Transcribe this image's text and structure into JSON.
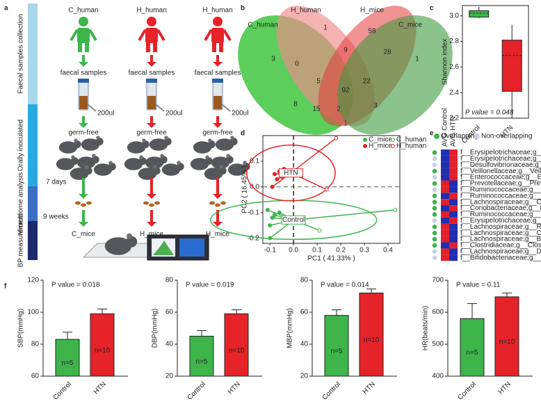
{
  "panel_labels": [
    "a",
    "b",
    "c",
    "d",
    "e",
    "f"
  ],
  "diagram": {
    "stages": [
      "Faecal samples collection",
      "Orally inoculated",
      "Microbiome analysis",
      "BP measurement"
    ],
    "columns": [
      {
        "donor": "C_human",
        "sample": "faecal samples",
        "volume": "200ul",
        "state": "germ-free",
        "recipient": "C_mice",
        "color": "#3db54b"
      },
      {
        "donor": "H_human",
        "sample": "faecal samples",
        "volume": "200ul",
        "state": "germ-free",
        "recipient": "H_mice",
        "color": "#e52329"
      },
      {
        "donor": "H_human",
        "sample": "faecal samples",
        "volume": "200ul",
        "state": "germ-free",
        "recipient": "H_mice",
        "color": "#e52329"
      }
    ],
    "durations": [
      "7 days",
      "9 weeks"
    ]
  },
  "venn": {
    "labels": [
      "C_human",
      "H_human",
      "H_mice",
      "C_mice"
    ],
    "counts": [
      3,
      1,
      0,
      9,
      58,
      28,
      1,
      5,
      22,
      92,
      8,
      15,
      2,
      3,
      1
    ]
  },
  "chart_data": [
    {
      "type": "box",
      "ylabel": "Shannon index",
      "annotation": "P value = 0.048",
      "categories": [
        "Control",
        "HTN"
      ],
      "boxes": [
        {
          "min": 2.98,
          "q1": 2.99,
          "median": 3.02,
          "q3": 3.04,
          "max": 3.07,
          "color": "#3db54b"
        },
        {
          "min": 2.2,
          "q1": 2.41,
          "median": 2.69,
          "q3": 2.81,
          "max": 2.93,
          "color": "#e52329"
        }
      ],
      "ylim": [
        2.2,
        3.08
      ],
      "yticks": [
        2.2,
        2.4,
        2.6,
        2.8,
        {
          "value": 3,
          "label": "3.0"
        }
      ]
    },
    {
      "type": "scatter",
      "xlabel": "PC1 ( 41.33% )",
      "ylabel": "PC2 ( 16.45% )",
      "series": [
        {
          "name": "C_mice",
          "group": "Control",
          "color": "#3db54b",
          "marker": "filled",
          "x": [
            -0.1,
            -0.11,
            -0.09,
            -0.06,
            -0.1,
            -0.08
          ],
          "y": [
            -0.2,
            -0.09,
            -0.12,
            -0.1,
            -0.15,
            -0.11
          ]
        },
        {
          "name": "C_human",
          "group": "Control",
          "color": "#3db54b",
          "marker": "open",
          "x": [
            0.43,
            0.11
          ],
          "y": [
            -0.09,
            -0.17
          ]
        },
        {
          "name": "H_mice",
          "group": "HTN",
          "color": "#e52329",
          "marker": "filled",
          "x": [
            -0.08,
            -0.06,
            -0.05,
            -0.07,
            -0.04,
            -0.03,
            -0.09
          ],
          "y": [
            0.05,
            0.06,
            0.04,
            0.03,
            0.07,
            0.06,
            0.0
          ]
        },
        {
          "name": "H_human",
          "group": "HTN",
          "color": "#e52329",
          "marker": "open",
          "x": [
            0.18,
            0.14
          ],
          "y": [
            0.19,
            -0.01
          ]
        }
      ],
      "xlim": [
        -0.13,
        0.45
      ],
      "ylim": [
        -0.22,
        0.2
      ],
      "xticks": [
        -0.1,
        {
          "value": 0,
          "label": "0.0"
        },
        0.1,
        0.2,
        0.3,
        0.4
      ],
      "yticks": [
        0.1,
        {
          "value": 0,
          "label": "0.0"
        },
        -0.1,
        -0.2
      ]
    },
    {
      "type": "heatmap",
      "legend": [
        "Overlapping",
        "Non-overlapping"
      ],
      "legend_colors": [
        "#3db54b",
        "#c9d0e6"
      ],
      "columns": [
        "AVG Control",
        "AVG HTN"
      ],
      "rows": [
        "f__Erysipelotrichaceae;g__Holdemania",
        "f__Erysipelotrichaceae;g__Coprobacillus",
        "f__Desulfovibrionaceae;g__Bilophila",
        "f__Veillonellaceae;g__Veillonella",
        "f__Enterococcaceae;g__Enterococcus",
        "f__Prevotellaceae;g__Prevotella",
        "f__Ruminococcaceae;g__Faecalibacterium",
        "f__Ruminococcaceae;g__Anaerotruncus",
        "f__Lachnospiraceae;g__Coprococcus",
        "f__Coriobacteriaceae;g__Eggerthella",
        "f__Ruminococcaceae;g__Ruminococcus",
        "f__Erysipelotrichaceae;g__Clostridium",
        "f__Lachnospiraceae;g__Roseburia",
        "f__Lachnospiraceae;g__Clostridium",
        "f__Lachnospiraceae;g__Blautia",
        "f__Clostridiaceae;g__Clostridium",
        "f__Lachnospiraceae;g__Dorea",
        "f__Bifidobacteriaceae;g__Bifidobacterium"
      ],
      "overlapping": [
        true,
        false,
        false,
        true,
        false,
        true,
        false,
        true,
        true,
        true,
        true,
        false,
        true,
        true,
        true,
        true,
        false,
        false
      ],
      "values": [
        [
          -1,
          1
        ],
        [
          -1,
          1
        ],
        [
          -1,
          1
        ],
        [
          -1,
          1
        ],
        [
          -1,
          1
        ],
        [
          1,
          -1
        ],
        [
          1,
          -1
        ],
        [
          -1,
          1
        ],
        [
          1,
          -1
        ],
        [
          -1,
          1
        ],
        [
          1,
          -1
        ],
        [
          -1,
          1
        ],
        [
          1,
          -1
        ],
        [
          1,
          -1
        ],
        [
          1,
          -1
        ],
        [
          -1,
          1
        ],
        [
          1,
          -1
        ],
        [
          1,
          -1
        ]
      ],
      "colors": {
        "low": "#1f2db0",
        "high": "#e0202a"
      }
    },
    {
      "type": "bar",
      "ylabel": "SBP(mmHg)",
      "annotation": "P value = 0.018",
      "categories": [
        "Control",
        "HTN"
      ],
      "values": [
        83,
        99
      ],
      "errors": [
        4.5,
        3
      ],
      "value_notes": [
        "n=5",
        "n=10"
      ],
      "colors": [
        "#3db54b",
        "#e52329"
      ],
      "ylim": [
        60,
        120
      ],
      "yticks": [
        60,
        80,
        100,
        120
      ]
    },
    {
      "type": "bar",
      "ylabel": "DBP(mmHg)",
      "annotation": "P value = 0.019",
      "categories": [
        "Control",
        "HTN"
      ],
      "values": [
        45,
        59
      ],
      "errors": [
        3.5,
        2.5
      ],
      "value_notes": [
        "n=5",
        "n=10"
      ],
      "colors": [
        "#3db54b",
        "#e52329"
      ],
      "ylim": [
        20,
        80
      ],
      "yticks": [
        20,
        40,
        60,
        80
      ]
    },
    {
      "type": "bar",
      "ylabel": "MBP(mmHg)",
      "annotation": "P value = 0.014",
      "categories": [
        "Control",
        "HTN"
      ],
      "values": [
        58,
        72
      ],
      "errors": [
        3.5,
        2.5
      ],
      "value_notes": [
        "n=5",
        "n=10"
      ],
      "colors": [
        "#3db54b",
        "#e52329"
      ],
      "ylim": [
        20,
        80
      ],
      "yticks": [
        20,
        40,
        60,
        80
      ]
    },
    {
      "type": "bar",
      "ylabel": "HR(beats/min)",
      "annotation": "P value = 0.11",
      "categories": [
        "Control",
        "HTN"
      ],
      "values": [
        580,
        648
      ],
      "errors": [
        47,
        12
      ],
      "value_notes": [
        "n=5",
        "n=10"
      ],
      "colors": [
        "#3db54b",
        "#e52329"
      ],
      "ylim": [
        400,
        700
      ],
      "yticks": [
        400,
        500,
        600,
        700
      ]
    }
  ]
}
